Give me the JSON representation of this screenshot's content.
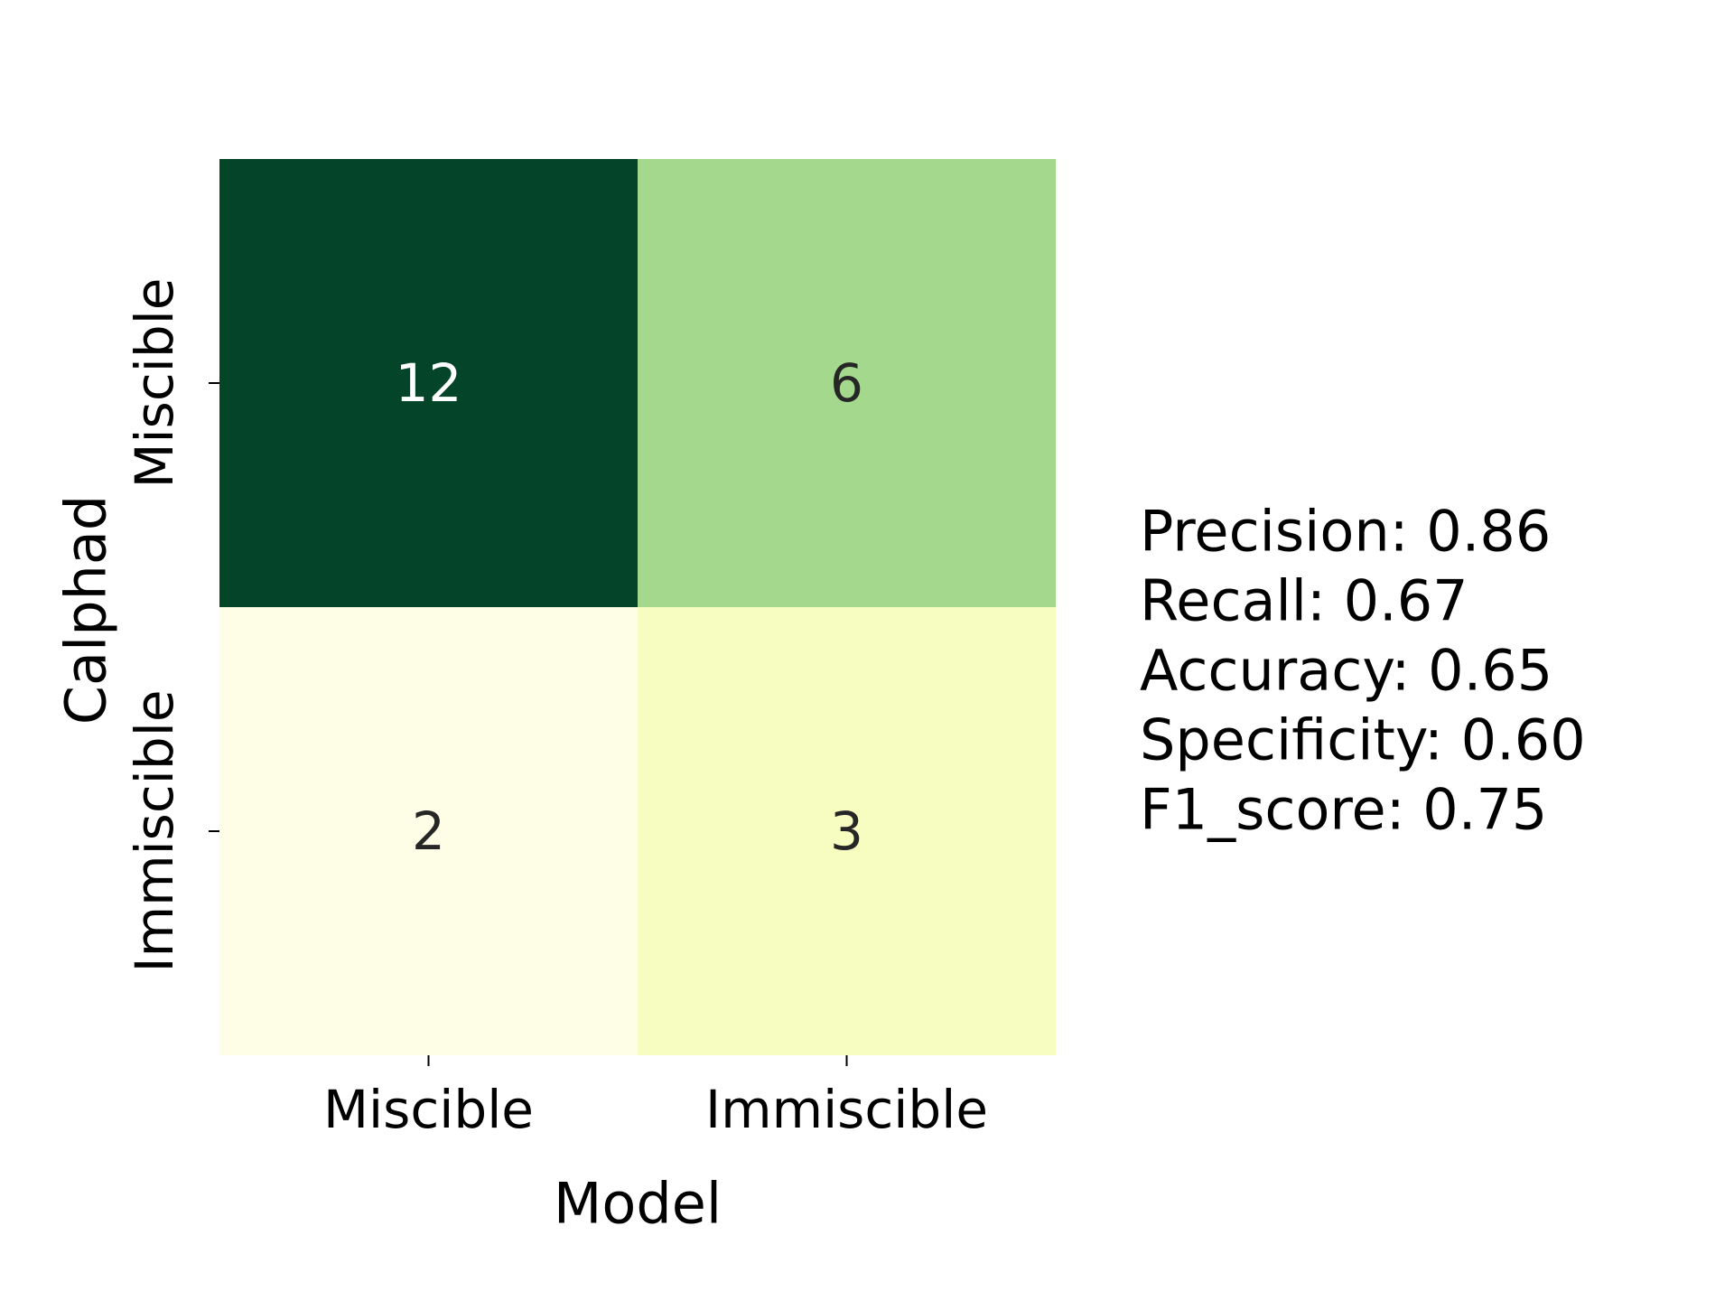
{
  "chart_data": {
    "type": "heatmap",
    "xlabel": "Model",
    "ylabel": "Calphad",
    "x_categories": [
      "Miscible",
      "Immiscible"
    ],
    "y_categories": [
      "Miscible",
      "Immiscible"
    ],
    "values": [
      [
        12,
        6
      ],
      [
        2,
        3
      ]
    ],
    "colormap": "YlGn",
    "cell_colors": [
      [
        "#04452a",
        "#a4d98d"
      ],
      [
        "#fdfee5",
        "#f7fcc1"
      ]
    ],
    "annotation_colors": [
      [
        "#ffffff",
        "#262626"
      ],
      [
        "#262626",
        "#262626"
      ]
    ],
    "metrics": [
      {
        "label": "Precision",
        "value": "0.86"
      },
      {
        "label": "Recall",
        "value": "0.67"
      },
      {
        "label": "Accuracy",
        "value": "0.65"
      },
      {
        "label": "Specificity",
        "value": "0.60"
      },
      {
        "label": "F1_score",
        "value": "0.75"
      }
    ]
  }
}
